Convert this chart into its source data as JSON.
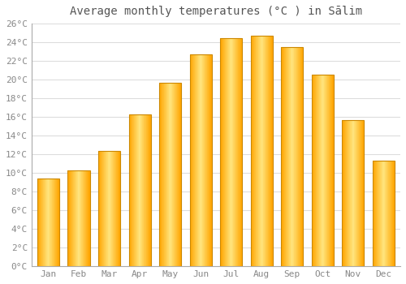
{
  "title": "Average monthly temperatures (°C ) in Sālim",
  "months": [
    "Jan",
    "Feb",
    "Mar",
    "Apr",
    "May",
    "Jun",
    "Jul",
    "Aug",
    "Sep",
    "Oct",
    "Nov",
    "Dec"
  ],
  "temperatures": [
    9.4,
    10.3,
    12.4,
    16.3,
    19.7,
    22.7,
    24.4,
    24.7,
    23.5,
    20.5,
    15.7,
    11.3
  ],
  "bar_color_center": "#FFE57F",
  "bar_color_edge": "#FFA500",
  "bar_border_color": "#CC8800",
  "ylim": [
    0,
    26
  ],
  "ytick_step": 2,
  "background_color": "#FFFFFF",
  "grid_color": "#DDDDDD",
  "title_fontsize": 10,
  "tick_fontsize": 8,
  "font_family": "monospace"
}
